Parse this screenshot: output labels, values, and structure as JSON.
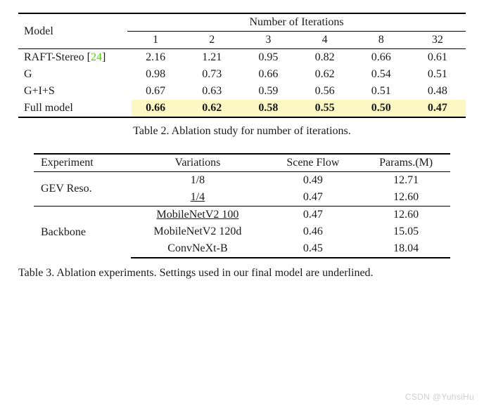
{
  "table2": {
    "header_model": "Model",
    "header_iter": "Number of Iterations",
    "iter_cols": [
      "1",
      "2",
      "3",
      "4",
      "8",
      "32"
    ],
    "rows": [
      {
        "model_prefix": "RAFT-Stereo [",
        "cite": "24",
        "model_suffix": "]",
        "vals": [
          "2.16",
          "1.21",
          "0.95",
          "0.82",
          "0.66",
          "0.61"
        ],
        "highlight": false
      },
      {
        "model": "G",
        "vals": [
          "0.98",
          "0.73",
          "0.66",
          "0.62",
          "0.54",
          "0.51"
        ],
        "highlight": false
      },
      {
        "model": "G+I+S",
        "vals": [
          "0.67",
          "0.63",
          "0.59",
          "0.56",
          "0.51",
          "0.48"
        ],
        "highlight": false
      },
      {
        "model": "Full model",
        "vals": [
          "0.66",
          "0.62",
          "0.58",
          "0.55",
          "0.50",
          "0.47"
        ],
        "highlight": true
      }
    ],
    "caption": "Table 2. Ablation study for number of iterations.",
    "highlight_color": "#fdf7c3",
    "cite_color": "#55c81e"
  },
  "table3": {
    "headers": {
      "exp": "Experiment",
      "var": "Variations",
      "sf": "Scene Flow",
      "pm": "Params.(M)"
    },
    "groups": [
      {
        "exp": "GEV Reso.",
        "rows": [
          {
            "var": "1/8",
            "sf": "0.49",
            "pm": "12.71",
            "under": false
          },
          {
            "var": "1/4",
            "sf": "0.47",
            "pm": "12.60",
            "under": true
          }
        ]
      },
      {
        "exp": "Backbone",
        "rows": [
          {
            "var": "MobileNetV2 100",
            "sf": "0.47",
            "pm": "12.60",
            "under": true
          },
          {
            "var": "MobileNetV2 120d",
            "sf": "0.46",
            "pm": "15.05",
            "under": false
          },
          {
            "var": "ConvNeXt-B",
            "sf": "0.45",
            "pm": "18.04",
            "under": false
          }
        ]
      }
    ],
    "caption": "Table 3. Ablation experiments. Settings used in our final model are underlined."
  },
  "watermark": "CSDN @YuhsiHu"
}
